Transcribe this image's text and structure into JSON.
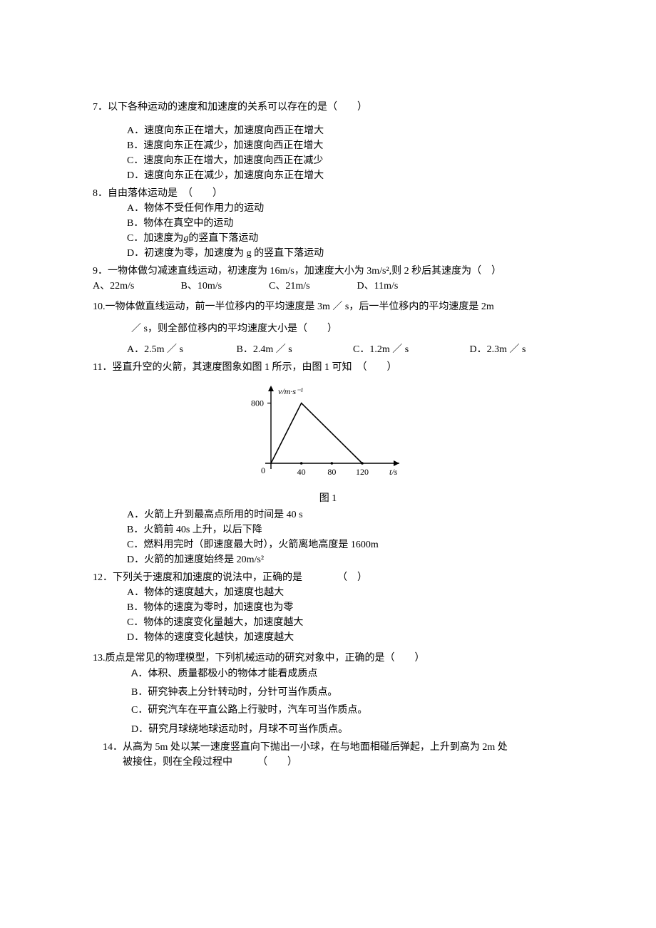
{
  "q7": {
    "title": "7．以下各种运动的速度和加速度的关系可以存在的是（　　）",
    "A": "A．速度向东正在增大，加速度向西正在增大",
    "B": "B．速度向东正在减少，加速度向西正在增大",
    "C": "C．速度向东正在增大，加速度向西正在减少",
    "D": "D．速度向东正在减少，加速度向东正在增大"
  },
  "q8": {
    "title": "8．自由落体运动是　（　　）",
    "A": "A．物体不受任何作用力的运动",
    "B": "B．物体在真空中的运动",
    "C_pre": "C．加速度为",
    "C_g": "g",
    "C_post": "的竖直下落运动",
    "D": "D．初速度为零，加速度为 g 的竖直下落运动"
  },
  "q9": {
    "title": "9．一物体做匀减速直线运动，初速度为 16m/s，加速度大小为 3m/s²,则 2 秒后其速度为（　）",
    "A": "A、22m/s",
    "B": "B、10m/s",
    "C": "C、21m/s",
    "D": "D、11m/s"
  },
  "q10": {
    "title_l1": "10.一物体做直线运动，前一半位移内的平均速度是 3m ／ s，后一半位移内的平均速度是 2m",
    "title_l2": "／ s，则全部位移内的平均速度大小是（　　）",
    "A": "A．2.5m ／ s",
    "B": "B．2.4m ／ s",
    "C": "C．1.2m ／ s",
    "D": "D．2.3m ／ s"
  },
  "q11": {
    "title": "11．竖直升空的火箭，其速度图象如图 1 所示，由图 1 可知　（　　）",
    "caption": "图 1",
    "A": "A．火箭上升到最高点所用的时间是 40 s",
    "B": "B．火箭前 40s 上升，以后下降",
    "C": "C．燃料用完时（即速度最大时），火箭离地高度是 1600m",
    "D": "D．火箭的加速度始终是 20m/s²"
  },
  "q12": {
    "title": "12．下列关于速度和加速度的说法中，正确的是　　　　（　）",
    "A": "A．物体的速度越大，加速度也越大",
    "B": "B．物体的速度为零时，加速度也为零",
    "C": "C．物体的速度变化量越大，加速度越大",
    "D": "D．物体的速度变化越快，加速度越大"
  },
  "q13": {
    "title": "13.质点是常见的物理模型，下列机械运动的研究对象中，正确的是（　　）",
    "A": "A．体积、质量都极小的物体才能看成质点",
    "B": "B．研究钟表上分针转动时，分针可当作质点。",
    "C": "C．研究汽车在平直公路上行驶时，汽车可当作质点。",
    "D": "D．研究月球绕地球运动时，月球不可当作质点。"
  },
  "q14": {
    "l1": "14．从高为 5m 处以某一速度竖直向下抛出一小球，在与地面相碰后弹起，上升到高为 2m 处",
    "l2": "被接住，则在全段过程中　　　（　　）"
  },
  "chart": {
    "y_label": "v/m·s⁻¹",
    "x_label": "t/s",
    "y_max_label": "800",
    "zero_label": "0",
    "x_ticks": [
      "40",
      "80",
      "120"
    ],
    "axis_color": "#000000",
    "line_color": "#000000",
    "bg_color": "#ffffff",
    "points": [
      {
        "x": 0,
        "y": 0
      },
      {
        "x": 40,
        "y": 800
      },
      {
        "x": 120,
        "y": 0
      }
    ],
    "x_axis_max": 150,
    "y_axis_max": 900
  }
}
